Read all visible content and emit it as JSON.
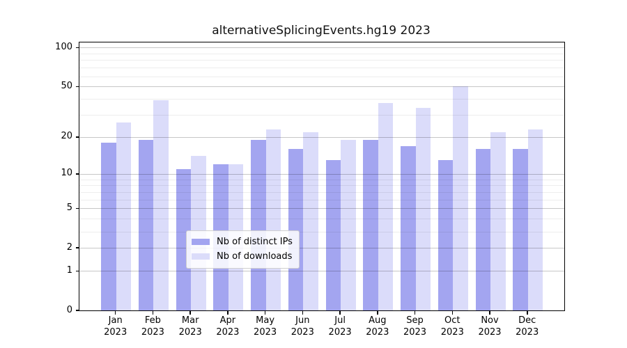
{
  "title": "alternativeSplicingEvents.hg19 2023",
  "colors": {
    "distinct_ips": "#a3a5f0",
    "downloads": "#dbdcfa",
    "major_grid": "rgba(0,0,0,0.22)",
    "minor_grid": "rgba(0,0,0,0.07)"
  },
  "legend": {
    "items": [
      {
        "label": "Nb of distinct IPs",
        "color": "#a3a5f0"
      },
      {
        "label": "Nb of downloads",
        "color": "#dbdcfa"
      }
    ]
  },
  "chart_data": {
    "type": "bar",
    "title": "alternativeSplicingEvents.hg19 2023",
    "year": "2023",
    "months": [
      "Jan",
      "Feb",
      "Mar",
      "Apr",
      "May",
      "Jun",
      "Jul",
      "Aug",
      "Sep",
      "Oct",
      "Nov",
      "Dec"
    ],
    "categories": [
      "Jan 2023",
      "Feb 2023",
      "Mar 2023",
      "Apr 2023",
      "May 2023",
      "Jun 2023",
      "Jul 2023",
      "Aug 2023",
      "Sep 2023",
      "Oct 2023",
      "Nov 2023",
      "Dec 2023"
    ],
    "series": [
      {
        "name": "Nb of distinct IPs",
        "color": "#a3a5f0",
        "values": [
          18,
          19,
          11,
          12,
          19,
          16,
          13,
          19,
          17,
          13,
          16,
          16
        ]
      },
      {
        "name": "Nb of downloads",
        "color": "#dbdcfa",
        "values": [
          26,
          39,
          14,
          12,
          23,
          22,
          19,
          37,
          34,
          50,
          22,
          23
        ]
      }
    ],
    "xlabel": "",
    "ylabel": "",
    "y_axis": {
      "scale": "log10(value+1)",
      "ylim": [
        0,
        110
      ],
      "major_ticks": [
        100,
        50,
        20,
        10,
        5,
        2,
        1,
        0
      ],
      "gridline_ticks": [
        100,
        50,
        20,
        10,
        5,
        2,
        1
      ],
      "minor_ticks": [
        3,
        4,
        6,
        7,
        8,
        9,
        30,
        40,
        60,
        70,
        80,
        90
      ]
    },
    "grid": true,
    "legend_position": "lower center"
  }
}
